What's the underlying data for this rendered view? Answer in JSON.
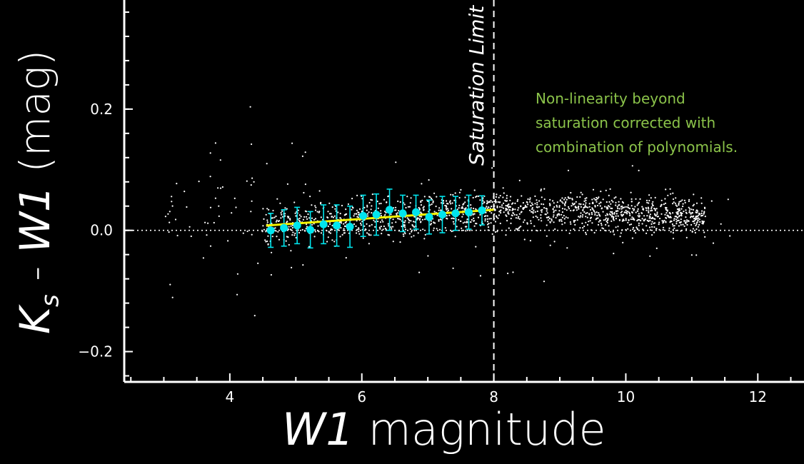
{
  "chart_data": {
    "type": "scatter",
    "title": "",
    "xlabel_italic": "W1",
    "xlabel_rest": " magnitude",
    "ylabel_prefix": "K",
    "ylabel_sub": "s",
    "ylabel_middle": " - ",
    "ylabel_italic": "W1",
    "ylabel_suffix": " (mag)",
    "xlim": [
      2.4,
      12.7
    ],
    "ylim": [
      -0.25,
      0.38
    ],
    "xticks": [
      4,
      6,
      8,
      10,
      12
    ],
    "xtick_labels": [
      "4",
      "6",
      "8",
      "10",
      "12"
    ],
    "yticks": [
      -0.2,
      0.0,
      0.2
    ],
    "ytick_labels": [
      "−0.2",
      "0.0",
      "0.2"
    ],
    "reference_line_y": 0.0,
    "saturation_limit_x": 8.0,
    "saturation_label": "Saturation Limit",
    "annotation": [
      "Non-linearity beyond",
      "saturation corrected with",
      "combination of polynomials."
    ],
    "binned_points": {
      "name": "",
      "x": [
        4.62,
        4.82,
        5.02,
        5.22,
        5.42,
        5.62,
        5.82,
        6.02,
        6.22,
        6.42,
        6.62,
        6.82,
        7.02,
        7.22,
        7.42,
        7.62,
        7.82
      ],
      "y": [
        0.0,
        0.004,
        0.008,
        0.001,
        0.01,
        0.008,
        0.006,
        0.024,
        0.026,
        0.034,
        0.028,
        0.03,
        0.022,
        0.026,
        0.028,
        0.03,
        0.033
      ],
      "err": [
        0.028,
        0.03,
        0.03,
        0.03,
        0.032,
        0.034,
        0.034,
        0.034,
        0.034,
        0.034,
        0.03,
        0.028,
        0.028,
        0.03,
        0.028,
        0.028,
        0.024
      ]
    },
    "fit_line": {
      "x": [
        4.55,
        8.0
      ],
      "y": [
        0.008,
        0.034
      ]
    },
    "colors": {
      "background": "#000000",
      "scatter": "#ffffff",
      "binned": "#00e5ee",
      "fit": "#f5f500",
      "annotation": "#8bc34a"
    }
  }
}
